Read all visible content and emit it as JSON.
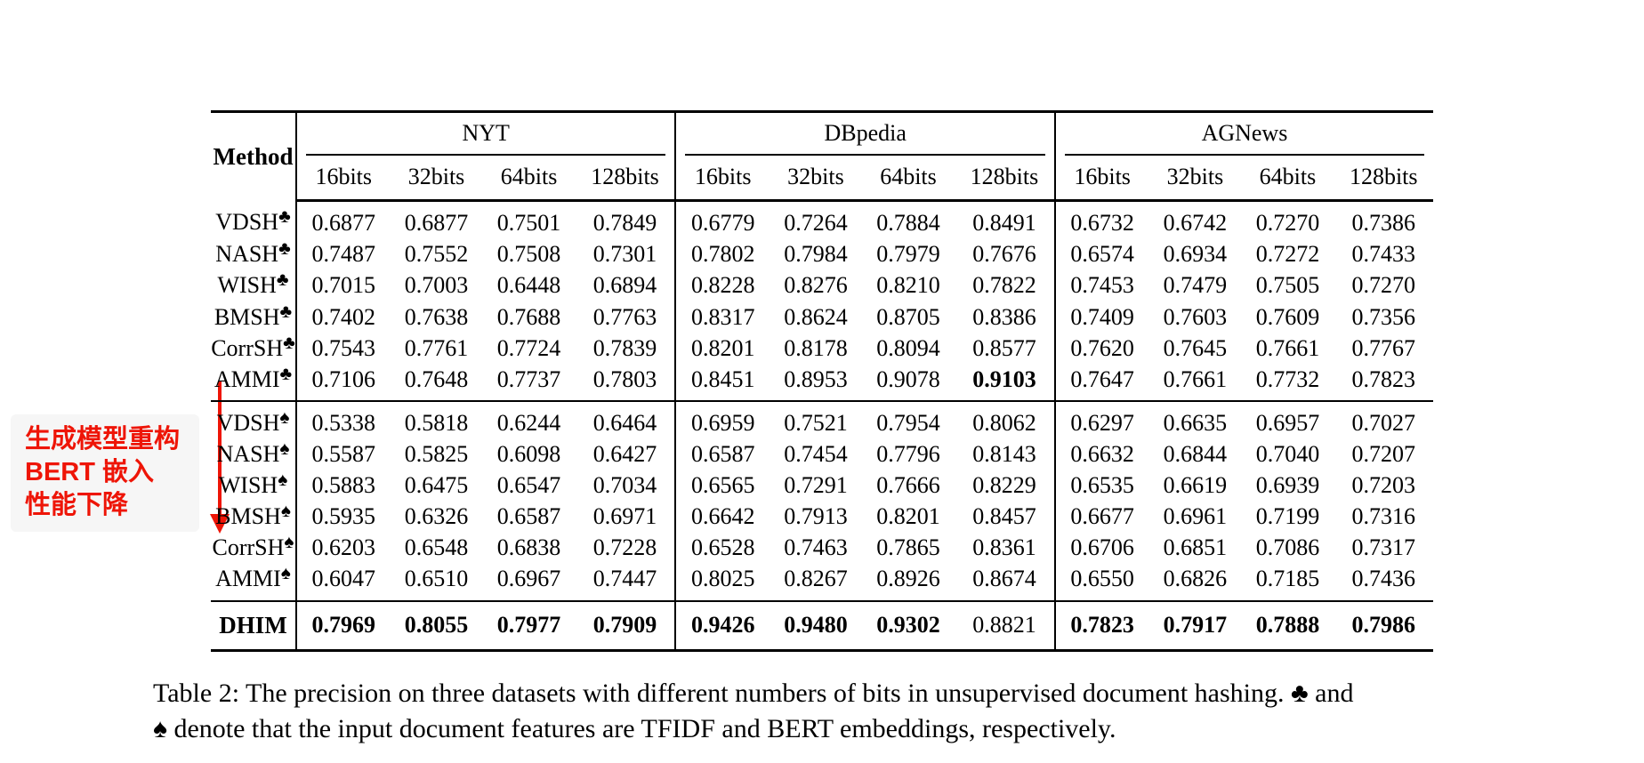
{
  "annotation": {
    "lines": [
      "生成模型重构",
      "BERT 嵌入",
      "性能下降"
    ],
    "color": "#ee1507",
    "box_bg": "#f6f6f6",
    "arrow_direction": "down"
  },
  "table": {
    "method_header": "Method",
    "groups": [
      "NYT",
      "DBpedia",
      "AGNews"
    ],
    "bit_headers": [
      "16bits",
      "32bits",
      "64bits",
      "128bits"
    ],
    "sections": [
      {
        "feature": "TFIDF",
        "rows": [
          {
            "method": "VDSH",
            "suit": "♣",
            "values": [
              "0.6877",
              "0.6877",
              "0.7501",
              "0.7849",
              "0.6779",
              "0.7264",
              "0.7884",
              "0.8491",
              "0.6732",
              "0.6742",
              "0.7270",
              "0.7386"
            ],
            "bold": []
          },
          {
            "method": "NASH",
            "suit": "♣",
            "values": [
              "0.7487",
              "0.7552",
              "0.7508",
              "0.7301",
              "0.7802",
              "0.7984",
              "0.7979",
              "0.7676",
              "0.6574",
              "0.6934",
              "0.7272",
              "0.7433"
            ],
            "bold": []
          },
          {
            "method": "WISH",
            "suit": "♣",
            "values": [
              "0.7015",
              "0.7003",
              "0.6448",
              "0.6894",
              "0.8228",
              "0.8276",
              "0.8210",
              "0.7822",
              "0.7453",
              "0.7479",
              "0.7505",
              "0.7270"
            ],
            "bold": []
          },
          {
            "method": "BMSH",
            "suit": "♣",
            "values": [
              "0.7402",
              "0.7638",
              "0.7688",
              "0.7763",
              "0.8317",
              "0.8624",
              "0.8705",
              "0.8386",
              "0.7409",
              "0.7603",
              "0.7609",
              "0.7356"
            ],
            "bold": []
          },
          {
            "method": "CorrSH",
            "suit": "♣",
            "values": [
              "0.7543",
              "0.7761",
              "0.7724",
              "0.7839",
              "0.8201",
              "0.8178",
              "0.8094",
              "0.8577",
              "0.7620",
              "0.7645",
              "0.7661",
              "0.7767"
            ],
            "bold": []
          },
          {
            "method": "AMMI",
            "suit": "♣",
            "values": [
              "0.7106",
              "0.7648",
              "0.7737",
              "0.7803",
              "0.8451",
              "0.8953",
              "0.9078",
              "0.9103",
              "0.7647",
              "0.7661",
              "0.7732",
              "0.7823"
            ],
            "bold": [
              7
            ]
          }
        ]
      },
      {
        "feature": "BERT",
        "rows": [
          {
            "method": "VDSH",
            "suit": "♠",
            "values": [
              "0.5338",
              "0.5818",
              "0.6244",
              "0.6464",
              "0.6959",
              "0.7521",
              "0.7954",
              "0.8062",
              "0.6297",
              "0.6635",
              "0.6957",
              "0.7027"
            ],
            "bold": []
          },
          {
            "method": "NASH",
            "suit": "♠",
            "values": [
              "0.5587",
              "0.5825",
              "0.6098",
              "0.6427",
              "0.6587",
              "0.7454",
              "0.7796",
              "0.8143",
              "0.6632",
              "0.6844",
              "0.7040",
              "0.7207"
            ],
            "bold": []
          },
          {
            "method": "WISH",
            "suit": "♠",
            "values": [
              "0.5883",
              "0.6475",
              "0.6547",
              "0.7034",
              "0.6565",
              "0.7291",
              "0.7666",
              "0.8229",
              "0.6535",
              "0.6619",
              "0.6939",
              "0.7203"
            ],
            "bold": []
          },
          {
            "method": "BMSH",
            "suit": "♠",
            "values": [
              "0.5935",
              "0.6326",
              "0.6587",
              "0.6971",
              "0.6642",
              "0.7913",
              "0.8201",
              "0.8457",
              "0.6677",
              "0.6961",
              "0.7199",
              "0.7316"
            ],
            "bold": []
          },
          {
            "method": "CorrSH",
            "suit": "♠",
            "values": [
              "0.6203",
              "0.6548",
              "0.6838",
              "0.7228",
              "0.6528",
              "0.7463",
              "0.7865",
              "0.8361",
              "0.6706",
              "0.6851",
              "0.7086",
              "0.7317"
            ],
            "bold": []
          },
          {
            "method": "AMMI",
            "suit": "♠",
            "values": [
              "0.6047",
              "0.6510",
              "0.6967",
              "0.7447",
              "0.8025",
              "0.8267",
              "0.8926",
              "0.8674",
              "0.6550",
              "0.6826",
              "0.7185",
              "0.7436"
            ],
            "bold": []
          }
        ]
      }
    ],
    "final_row": {
      "method": "DHIM",
      "values": [
        "0.7969",
        "0.8055",
        "0.7977",
        "0.7909",
        "0.9426",
        "0.9480",
        "0.9302",
        "0.8821",
        "0.7823",
        "0.7917",
        "0.7888",
        "0.7986"
      ],
      "bold": [
        0,
        1,
        2,
        3,
        4,
        5,
        6,
        8,
        9,
        10,
        11
      ]
    }
  },
  "caption": {
    "line1": "Table 2: The precision on three datasets with different numbers of bits in unsupervised document hashing. ♣ and",
    "line2": "♠ denote that the input document features are TFIDF and BERT embeddings, respectively."
  }
}
